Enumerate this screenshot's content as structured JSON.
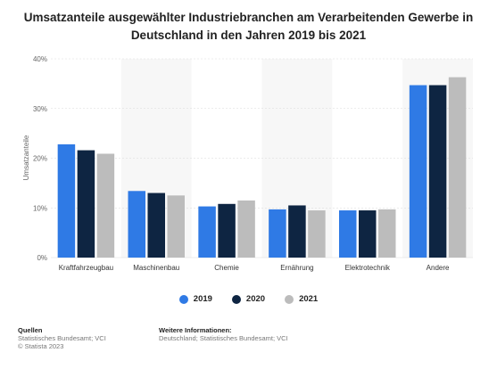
{
  "chart_data": {
    "type": "bar",
    "title": "Umsatzanteile ausgewählter Industriebranchen am Verarbeitenden Gewerbe in Deutschland in den Jahren 2019 bis 2021",
    "ylabel": "Umsatzanteile",
    "categories": [
      "Kraftfahrzeugbau",
      "Maschinenbau",
      "Chemie",
      "Ernährung",
      "Elektrotechnik",
      "Andere"
    ],
    "series": [
      {
        "name": "2019",
        "values": [
          22.8,
          13.4,
          10.3,
          9.7,
          9.5,
          34.7
        ]
      },
      {
        "name": "2020",
        "values": [
          21.6,
          13.0,
          10.8,
          10.5,
          9.5,
          34.7
        ]
      },
      {
        "name": "2021",
        "values": [
          20.9,
          12.5,
          11.5,
          9.5,
          9.7,
          36.3
        ]
      }
    ],
    "ylim": [
      0,
      40
    ],
    "yticks": [
      "0%",
      "10%",
      "20%",
      "30%",
      "40%"
    ],
    "grid": true,
    "legend_position": "bottom"
  },
  "colors": {
    "series": [
      "#2f7ae5",
      "#0e2542",
      "#bcbcbc"
    ],
    "band": "#f7f7f7",
    "grid": "#d9d9d9"
  },
  "footer": {
    "sources_heading": "Quellen",
    "sources_text": "Statistisches Bundesamt; VCI",
    "copyright": "© Statista 2023",
    "info_heading": "Weitere Informationen:",
    "info_text": "Deutschland; Statistisches Bundesamt; VCI"
  }
}
